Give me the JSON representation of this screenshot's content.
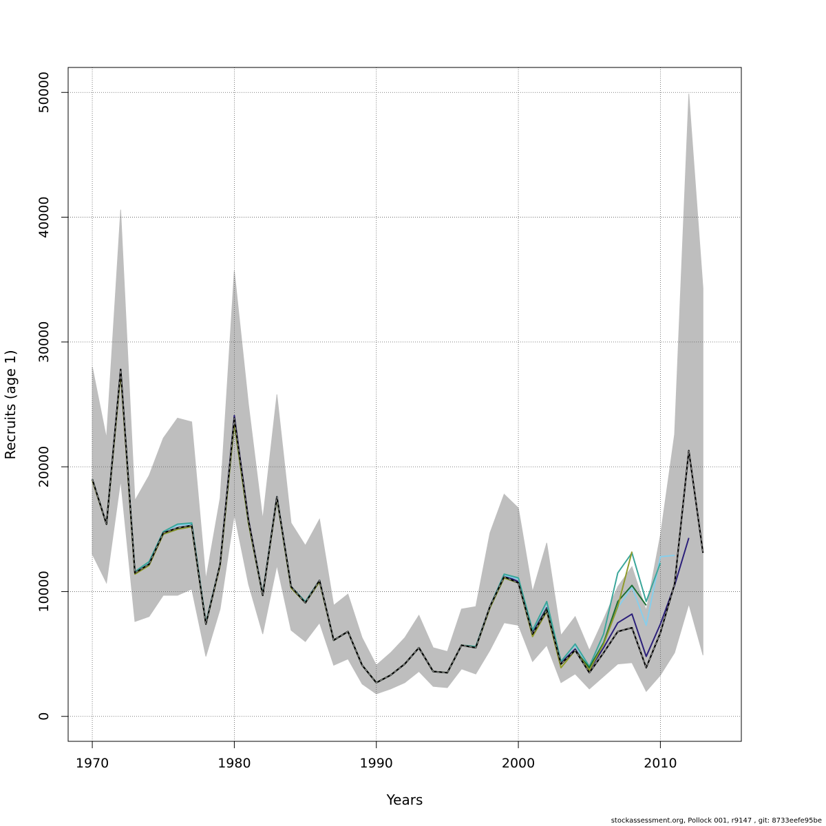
{
  "chart_data": {
    "type": "line",
    "title": "",
    "xlabel": "Years",
    "ylabel": "Recruits (age 1)",
    "xlim": [
      1968.3,
      2015.7
    ],
    "ylim": [
      -2000,
      52000
    ],
    "x_ticks": [
      1970,
      1980,
      1990,
      2000,
      2010
    ],
    "y_ticks": [
      0,
      10000,
      20000,
      30000,
      40000,
      50000
    ],
    "grid": true,
    "legend": "none",
    "band": {
      "color": "#bebebe",
      "x": [
        1970,
        1971,
        1972,
        1973,
        1974,
        1975,
        1976,
        1977,
        1978,
        1979,
        1980,
        1981,
        1982,
        1983,
        1984,
        1985,
        1986,
        1987,
        1988,
        1989,
        1990,
        1991,
        1992,
        1993,
        1994,
        1995,
        1996,
        1997,
        1998,
        1999,
        2000,
        2001,
        2002,
        2003,
        2004,
        2005,
        2006,
        2007,
        2008,
        2009,
        2010,
        2011,
        2012,
        2013
      ],
      "upper": [
        28000,
        22300,
        40600,
        17300,
        19300,
        22300,
        23900,
        23600,
        11000,
        17500,
        35700,
        25000,
        15800,
        25800,
        15500,
        13700,
        15800,
        8900,
        9800,
        6300,
        4100,
        5100,
        6300,
        8100,
        5500,
        5200,
        8600,
        8800,
        14700,
        17800,
        16700,
        10000,
        13900,
        6500,
        8000,
        5300,
        7800,
        10400,
        12000,
        8500,
        14500,
        22600,
        49900,
        34300
      ],
      "lower": [
        13000,
        10700,
        18900,
        7600,
        8000,
        9700,
        9700,
        10200,
        4800,
        8600,
        16200,
        10600,
        6600,
        12100,
        6900,
        6000,
        7500,
        4100,
        4600,
        2600,
        1800,
        2200,
        2700,
        3600,
        2400,
        2300,
        3800,
        3400,
        5300,
        7500,
        7300,
        4400,
        5700,
        2700,
        3400,
        2200,
        3200,
        4200,
        4300,
        2000,
        3300,
        5100,
        9000,
        4900
      ]
    },
    "series": [
      {
        "color": "#000000",
        "dashed": true,
        "x": [
          1970,
          1971,
          1972,
          1973,
          1974,
          1975,
          1976,
          1977,
          1978,
          1979,
          1980,
          1981,
          1982,
          1983,
          1984,
          1985,
          1986,
          1987,
          1988,
          1989,
          1990,
          1991,
          1992,
          1993,
          1994,
          1995,
          1996,
          1997,
          1998,
          1999,
          2000,
          2001,
          2002,
          2003,
          2004,
          2005,
          2006,
          2007,
          2008,
          2009,
          2010,
          2011,
          2012,
          2013
        ],
        "y": [
          19000,
          15400,
          27800,
          11500,
          12200,
          14700,
          15100,
          15300,
          7400,
          12200,
          23900,
          15700,
          9700,
          17600,
          10400,
          9100,
          10900,
          6100,
          6800,
          4100,
          2700,
          3300,
          4200,
          5500,
          3600,
          3500,
          5700,
          5500,
          8800,
          11200,
          10700,
          6600,
          8500,
          4200,
          5300,
          3500,
          5100,
          6800,
          7100,
          3900,
          6700,
          10600,
          21300,
          13100
        ]
      },
      {
        "color": "#2b1f7a",
        "dashed": false,
        "x": [
          1970,
          1971,
          1972,
          1973,
          1974,
          1975,
          1976,
          1977,
          1978,
          1979,
          1980,
          1981,
          1982,
          1983,
          1984,
          1985,
          1986,
          1987,
          1988,
          1989,
          1990,
          1991,
          1992,
          1993,
          1994,
          1995,
          1996,
          1997,
          1998,
          1999,
          2000,
          2001,
          2002,
          2003,
          2004,
          2005,
          2006,
          2007,
          2008,
          2009,
          2010,
          2011,
          2012
        ],
        "y": [
          19000,
          15400,
          27800,
          11500,
          12200,
          14700,
          15100,
          15300,
          7400,
          12200,
          24100,
          15800,
          9700,
          17600,
          10400,
          9100,
          10900,
          6100,
          6800,
          4100,
          2700,
          3300,
          4200,
          5500,
          3600,
          3500,
          5700,
          5500,
          8800,
          11300,
          10800,
          6700,
          8700,
          4300,
          5400,
          3700,
          5500,
          7500,
          8200,
          4800,
          7400,
          10500,
          14300
        ]
      },
      {
        "color": "#87ceeb",
        "dashed": false,
        "x": [
          1970,
          1971,
          1972,
          1973,
          1974,
          1975,
          1976,
          1977,
          1978,
          1979,
          1980,
          1981,
          1982,
          1983,
          1984,
          1985,
          1986,
          1987,
          1988,
          1989,
          1990,
          1991,
          1992,
          1993,
          1994,
          1995,
          1996,
          1997,
          1998,
          1999,
          2000,
          2001,
          2002,
          2003,
          2004,
          2005,
          2006,
          2007,
          2008,
          2009,
          2010,
          2011
        ],
        "y": [
          19000,
          15400,
          27700,
          11600,
          12300,
          14800,
          15300,
          15400,
          7500,
          12200,
          23800,
          15600,
          9800,
          17600,
          10400,
          9100,
          10900,
          6100,
          6800,
          4100,
          2700,
          3300,
          4200,
          5500,
          3600,
          3500,
          5700,
          5500,
          8800,
          11300,
          11000,
          6900,
          9100,
          4400,
          5700,
          3900,
          6000,
          8700,
          10400,
          7300,
          12800,
          12900
        ]
      },
      {
        "color": "#3aa69a",
        "dashed": false,
        "x": [
          1970,
          1971,
          1972,
          1973,
          1974,
          1975,
          1976,
          1977,
          1978,
          1979,
          1980,
          1981,
          1982,
          1983,
          1984,
          1985,
          1986,
          1987,
          1988,
          1989,
          1990,
          1991,
          1992,
          1993,
          1994,
          1995,
          1996,
          1997,
          1998,
          1999,
          2000,
          2001,
          2002,
          2003,
          2004,
          2005,
          2006,
          2007,
          2008,
          2009,
          2010
        ],
        "y": [
          19000,
          15400,
          27700,
          11600,
          12400,
          14800,
          15400,
          15500,
          7500,
          12200,
          23700,
          15600,
          9800,
          17600,
          10400,
          9200,
          10900,
          6100,
          6800,
          4100,
          2700,
          3300,
          4200,
          5500,
          3600,
          3500,
          5700,
          5600,
          8800,
          11400,
          11100,
          6900,
          9200,
          4400,
          5800,
          4000,
          6600,
          11500,
          13100,
          9200,
          12300
        ]
      },
      {
        "color": "#1b6e32",
        "dashed": false,
        "x": [
          1970,
          1971,
          1972,
          1973,
          1974,
          1975,
          1976,
          1977,
          1978,
          1979,
          1980,
          1981,
          1982,
          1983,
          1984,
          1985,
          1986,
          1987,
          1988,
          1989,
          1990,
          1991,
          1992,
          1993,
          1994,
          1995,
          1996,
          1997,
          1998,
          1999,
          2000,
          2001,
          2002,
          2003,
          2004,
          2005,
          2006,
          2007,
          2008,
          2009
        ],
        "y": [
          19000,
          15400,
          27700,
          11500,
          12200,
          14600,
          15000,
          15200,
          7400,
          12200,
          23500,
          15500,
          9700,
          17500,
          10300,
          9100,
          10800,
          6100,
          6800,
          4100,
          2700,
          3300,
          4200,
          5500,
          3600,
          3500,
          5700,
          5500,
          8700,
          11100,
          10700,
          6600,
          8600,
          4200,
          5300,
          3900,
          5900,
          9200,
          10500,
          8900
        ]
      },
      {
        "color": "#8f9a2a",
        "dashed": false,
        "x": [
          1970,
          1971,
          1972,
          1973,
          1974,
          1975,
          1976,
          1977,
          1978,
          1979,
          1980,
          1981,
          1982,
          1983,
          1984,
          1985,
          1986,
          1987,
          1988,
          1989,
          1990,
          1991,
          1992,
          1993,
          1994,
          1995,
          1996,
          1997,
          1998,
          1999,
          2000,
          2001,
          2002,
          2003,
          2004,
          2005,
          2006,
          2007,
          2008
        ],
        "y": [
          18900,
          15400,
          27500,
          11400,
          12100,
          14600,
          15000,
          15200,
          7400,
          12100,
          23500,
          15500,
          9700,
          17500,
          10300,
          9100,
          10800,
          6100,
          6800,
          4100,
          2700,
          3300,
          4200,
          5500,
          3600,
          3500,
          5700,
          5500,
          8700,
          11100,
          10700,
          6400,
          8400,
          3900,
          5300,
          3700,
          5800,
          8800,
          13200
        ]
      }
    ]
  },
  "footer": {
    "text": "stockassessment.org, Pollock  001, r9147 , git: 8733eefe95be"
  }
}
